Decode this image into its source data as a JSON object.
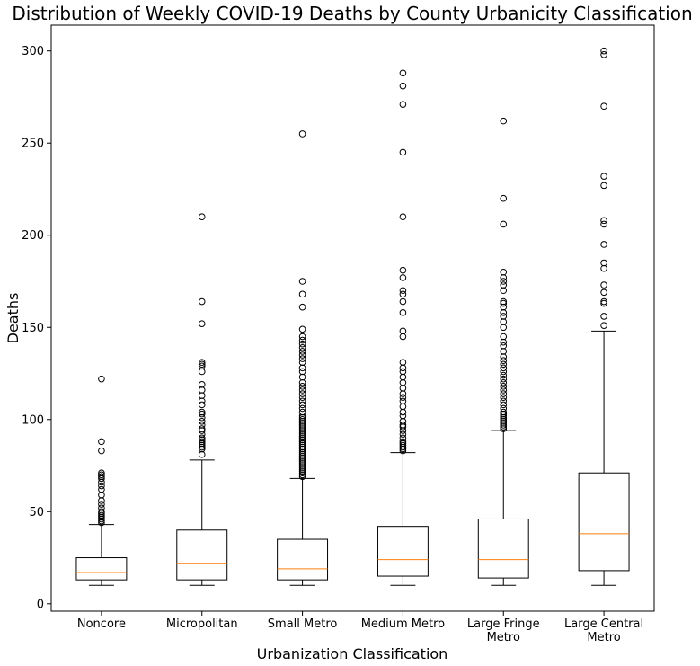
{
  "chart_data": {
    "type": "box",
    "title": "Distribution of Weekly COVID-19 Deaths by County Urbanicity Classification",
    "xlabel": "Urbanization Classification",
    "ylabel": "Deaths",
    "ylim": [
      -4,
      314
    ],
    "yticks": [
      0,
      50,
      100,
      150,
      200,
      250,
      300
    ],
    "grid": false,
    "colors": {
      "box": "#000000",
      "median": "#ff7f0e",
      "flier_edge": "#000000"
    },
    "categories": [
      {
        "label_lines": [
          "Noncore"
        ],
        "min": 10,
        "q1": 13,
        "median": 17,
        "q3": 25,
        "whisker_high": 43,
        "outliers": [
          44,
          45,
          46,
          47,
          48,
          49,
          50,
          52,
          54,
          56,
          59,
          62,
          64,
          66,
          68,
          69,
          70,
          71,
          83,
          88,
          122
        ]
      },
      {
        "label_lines": [
          "Micropolitan"
        ],
        "min": 10,
        "q1": 13,
        "median": 22,
        "q3": 40,
        "whisker_high": 78,
        "outliers": [
          81,
          84,
          85,
          86,
          87,
          88,
          89,
          90,
          92,
          94,
          95,
          97,
          99,
          101,
          103,
          104,
          108,
          110,
          113,
          116,
          119,
          126,
          129,
          130,
          131,
          152,
          164,
          210
        ]
      },
      {
        "label_lines": [
          "Small Metro"
        ],
        "min": 10,
        "q1": 13,
        "median": 19,
        "q3": 35,
        "whisker_high": 68,
        "outliers": [
          69,
          70,
          71,
          72,
          73,
          74,
          75,
          76,
          77,
          78,
          79,
          80,
          81,
          82,
          83,
          84,
          85,
          86,
          87,
          88,
          89,
          90,
          91,
          92,
          93,
          94,
          95,
          96,
          97,
          98,
          99,
          100,
          101,
          102,
          104,
          106,
          108,
          110,
          112,
          114,
          116,
          118,
          120,
          123,
          126,
          128,
          131,
          133,
          135,
          137,
          139,
          141,
          143,
          145,
          149,
          161,
          168,
          175,
          255
        ]
      },
      {
        "label_lines": [
          "Medium Metro"
        ],
        "min": 10,
        "q1": 15,
        "median": 24,
        "q3": 42,
        "whisker_high": 82,
        "outliers": [
          83,
          84,
          85,
          86,
          87,
          88,
          90,
          92,
          94,
          96,
          97,
          99,
          102,
          104,
          107,
          110,
          112,
          114,
          117,
          120,
          123,
          126,
          128,
          131,
          145,
          148,
          158,
          164,
          168,
          170,
          177,
          181,
          210,
          245,
          271,
          281,
          288
        ]
      },
      {
        "label_lines": [
          "Large Fringe",
          "Metro"
        ],
        "min": 10,
        "q1": 14,
        "median": 24,
        "q3": 46,
        "whisker_high": 94,
        "outliers": [
          95,
          96,
          97,
          98,
          99,
          100,
          101,
          102,
          103,
          104,
          106,
          108,
          110,
          112,
          114,
          116,
          118,
          120,
          122,
          124,
          126,
          128,
          130,
          132,
          134,
          137,
          140,
          142,
          145,
          150,
          153,
          156,
          158,
          161,
          163,
          164,
          170,
          173,
          175,
          177,
          180,
          206,
          220,
          262
        ]
      },
      {
        "label_lines": [
          "Large Central",
          "Metro"
        ],
        "min": 10,
        "q1": 18,
        "median": 38,
        "q3": 71,
        "whisker_high": 148,
        "outliers": [
          151,
          156,
          163,
          164,
          169,
          173,
          182,
          185,
          195,
          206,
          208,
          227,
          232,
          270,
          298,
          300
        ]
      }
    ]
  }
}
